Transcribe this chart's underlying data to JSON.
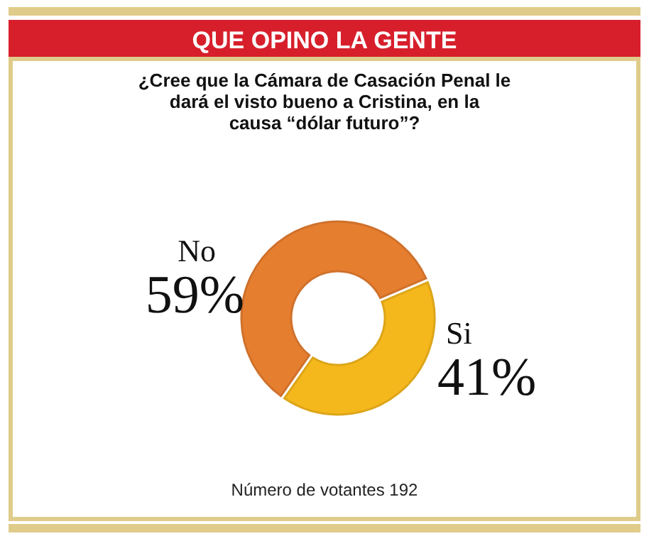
{
  "chart_data": {
    "type": "donut",
    "title": "QUE OPINO LA GENTE",
    "subtitle": "¿Cree que la Cámara de Casación Penal le dará el visto bueno a Cristina, en la causa “dólar futuro”?",
    "categories": [
      "No",
      "Si"
    ],
    "values": [
      59,
      41
    ],
    "colors": [
      "#e67e30",
      "#f5b81c"
    ],
    "value_labels": [
      "59%",
      "41%"
    ],
    "annotations": [
      "Número de votantes 192"
    ]
  }
}
